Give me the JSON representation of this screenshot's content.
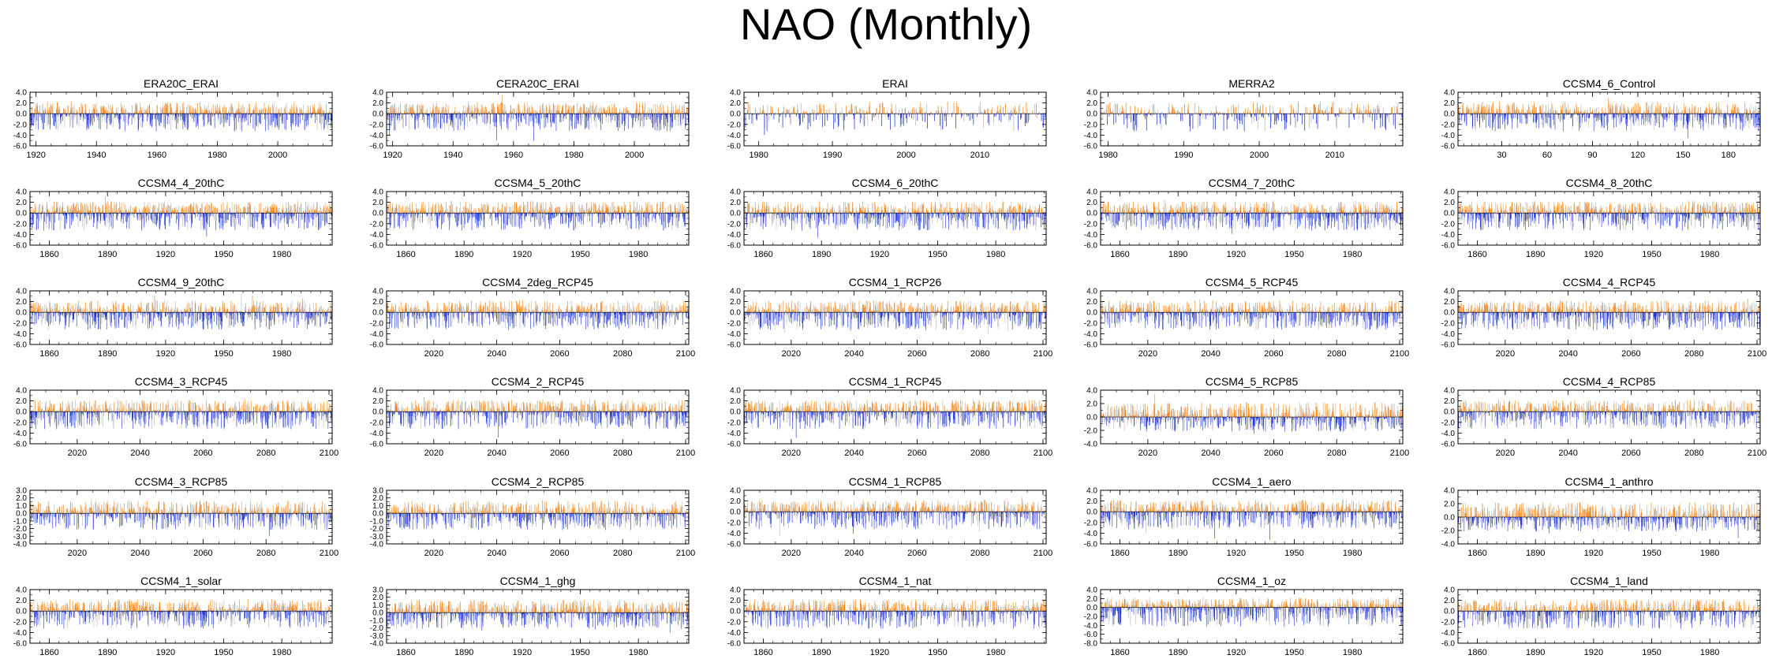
{
  "title": "NAO (Monthly)",
  "colors": {
    "positive": "#f07f0c",
    "negative": "#1b2fd6",
    "faint": "#b4b4b4",
    "axis": "#000000"
  },
  "chart_data": [
    {
      "type": "bar",
      "title": "ERA20C_ERAI",
      "x_range": [
        1918,
        2018
      ],
      "xticks": [
        1920,
        1940,
        1960,
        1980,
        2000
      ],
      "yticks": [
        "4.0",
        "2.0",
        "0.0",
        "-2.0",
        "-4.0",
        "-6.0"
      ],
      "ylim": [
        -6,
        4
      ],
      "n": 1200,
      "seed": 1
    },
    {
      "type": "bar",
      "title": "CERA20C_ERAI",
      "x_range": [
        1918,
        2018
      ],
      "xticks": [
        1920,
        1940,
        1960,
        1980,
        2000
      ],
      "yticks": [
        "4.0",
        "2.0",
        "0.0",
        "-2.0",
        "-4.0",
        "-6.0"
      ],
      "ylim": [
        -6,
        4
      ],
      "n": 1200,
      "seed": 2
    },
    {
      "type": "bar",
      "title": "ERAI",
      "x_range": [
        1978,
        2019
      ],
      "xticks": [
        1980,
        1990,
        2000,
        2010
      ],
      "yticks": [
        "4.0",
        "2.0",
        "0.0",
        "-2.0",
        "-4.0",
        "-6.0"
      ],
      "ylim": [
        -6,
        4
      ],
      "n": 480,
      "seed": 3
    },
    {
      "type": "bar",
      "title": "MERRA2",
      "x_range": [
        1979,
        2019
      ],
      "xticks": [
        1980,
        1990,
        2000,
        2010
      ],
      "yticks": [
        "4.0",
        "2.0",
        "0.0",
        "-2.0",
        "-4.0",
        "-6.0"
      ],
      "ylim": [
        -6,
        4
      ],
      "n": 470,
      "seed": 4
    },
    {
      "type": "bar",
      "title": "CCSM4_6_Control",
      "x_range": [
        1,
        201
      ],
      "xticks": [
        30,
        60,
        90,
        120,
        150,
        180
      ],
      "yticks": [
        "4.0",
        "2.0",
        "0.0",
        "-2.0",
        "-4.0",
        "-6.0"
      ],
      "ylim": [
        -6,
        4
      ],
      "n": 1200,
      "seed": 5
    },
    {
      "type": "bar",
      "title": "CCSM4_4_20thC",
      "x_range": [
        1850,
        2006
      ],
      "xticks": [
        1860,
        1890,
        1920,
        1950,
        1980
      ],
      "yticks": [
        "4.0",
        "2.0",
        "0.0",
        "-2.0",
        "-4.0",
        "-6.0"
      ],
      "ylim": [
        -6,
        4
      ],
      "n": 1200,
      "seed": 6
    },
    {
      "type": "bar",
      "title": "CCSM4_5_20thC",
      "x_range": [
        1850,
        2006
      ],
      "xticks": [
        1860,
        1890,
        1920,
        1950,
        1980
      ],
      "yticks": [
        "4.0",
        "2.0",
        "0.0",
        "-2.0",
        "-4.0",
        "-6.0"
      ],
      "ylim": [
        -6,
        4
      ],
      "n": 1200,
      "seed": 7
    },
    {
      "type": "bar",
      "title": "CCSM4_6_20thC",
      "x_range": [
        1850,
        2006
      ],
      "xticks": [
        1860,
        1890,
        1920,
        1950,
        1980
      ],
      "yticks": [
        "4.0",
        "2.0",
        "0.0",
        "-2.0",
        "-4.0",
        "-6.0"
      ],
      "ylim": [
        -6,
        4
      ],
      "n": 1200,
      "seed": 8
    },
    {
      "type": "bar",
      "title": "CCSM4_7_20thC",
      "x_range": [
        1850,
        2006
      ],
      "xticks": [
        1860,
        1890,
        1920,
        1950,
        1980
      ],
      "yticks": [
        "4.0",
        "2.0",
        "0.0",
        "-2.0",
        "-4.0",
        "-6.0"
      ],
      "ylim": [
        -6,
        4
      ],
      "n": 1200,
      "seed": 9
    },
    {
      "type": "bar",
      "title": "CCSM4_8_20thC",
      "x_range": [
        1850,
        2006
      ],
      "xticks": [
        1860,
        1890,
        1920,
        1950,
        1980
      ],
      "yticks": [
        "4.0",
        "2.0",
        "0.0",
        "-2.0",
        "-4.0",
        "-6.0"
      ],
      "ylim": [
        -6,
        4
      ],
      "n": 1200,
      "seed": 10
    },
    {
      "type": "bar",
      "title": "CCSM4_9_20thC",
      "x_range": [
        1850,
        2006
      ],
      "xticks": [
        1860,
        1890,
        1920,
        1950,
        1980
      ],
      "yticks": [
        "4.0",
        "2.0",
        "0.0",
        "-2.0",
        "-4.0",
        "-6.0"
      ],
      "ylim": [
        -6,
        4
      ],
      "n": 1200,
      "seed": 11
    },
    {
      "type": "bar",
      "title": "CCSM4_2deg_RCP45",
      "x_range": [
        2005,
        2101
      ],
      "xticks": [
        2020,
        2040,
        2060,
        2080,
        2100
      ],
      "yticks": [
        "4.0",
        "2.0",
        "0.0",
        "-2.0",
        "-4.0",
        "-6.0"
      ],
      "ylim": [
        -6,
        4
      ],
      "n": 1150,
      "seed": 12
    },
    {
      "type": "bar",
      "title": "CCSM4_1_RCP26",
      "x_range": [
        2005,
        2101
      ],
      "xticks": [
        2020,
        2040,
        2060,
        2080,
        2100
      ],
      "yticks": [
        "4.0",
        "2.0",
        "0.0",
        "-2.0",
        "-4.0",
        "-6.0"
      ],
      "ylim": [
        -6,
        4
      ],
      "n": 1150,
      "seed": 13
    },
    {
      "type": "bar",
      "title": "CCSM4_5_RCP45",
      "x_range": [
        2005,
        2101
      ],
      "xticks": [
        2020,
        2040,
        2060,
        2080,
        2100
      ],
      "yticks": [
        "4.0",
        "2.0",
        "0.0",
        "-2.0",
        "-4.0",
        "-6.0"
      ],
      "ylim": [
        -6,
        4
      ],
      "n": 1150,
      "seed": 14
    },
    {
      "type": "bar",
      "title": "CCSM4_4_RCP45",
      "x_range": [
        2005,
        2101
      ],
      "xticks": [
        2020,
        2040,
        2060,
        2080,
        2100
      ],
      "yticks": [
        "4.0",
        "2.0",
        "0.0",
        "-2.0",
        "-4.0",
        "-6.0"
      ],
      "ylim": [
        -6,
        4
      ],
      "n": 1150,
      "seed": 15
    },
    {
      "type": "bar",
      "title": "CCSM4_3_RCP45",
      "x_range": [
        2005,
        2101
      ],
      "xticks": [
        2020,
        2040,
        2060,
        2080,
        2100
      ],
      "yticks": [
        "4.0",
        "2.0",
        "0.0",
        "-2.0",
        "-4.0",
        "-6.0"
      ],
      "ylim": [
        -6,
        4
      ],
      "n": 1150,
      "seed": 16
    },
    {
      "type": "bar",
      "title": "CCSM4_2_RCP45",
      "x_range": [
        2005,
        2101
      ],
      "xticks": [
        2020,
        2040,
        2060,
        2080,
        2100
      ],
      "yticks": [
        "4.0",
        "2.0",
        "0.0",
        "-2.0",
        "-4.0",
        "-6.0"
      ],
      "ylim": [
        -6,
        4
      ],
      "n": 1150,
      "seed": 17
    },
    {
      "type": "bar",
      "title": "CCSM4_1_RCP45",
      "x_range": [
        2005,
        2101
      ],
      "xticks": [
        2020,
        2040,
        2060,
        2080,
        2100
      ],
      "yticks": [
        "4.0",
        "2.0",
        "0.0",
        "-2.0",
        "-4.0",
        "-6.0"
      ],
      "ylim": [
        -6,
        4
      ],
      "n": 1150,
      "seed": 18
    },
    {
      "type": "bar",
      "title": "CCSM4_5_RCP85",
      "x_range": [
        2005,
        2101
      ],
      "xticks": [
        2020,
        2040,
        2060,
        2080,
        2100
      ],
      "yticks": [
        "4.0",
        "2.0",
        "0.0",
        "-2.0",
        "-4.0"
      ],
      "ylim": [
        -4,
        4
      ],
      "n": 1150,
      "seed": 19
    },
    {
      "type": "bar",
      "title": "CCSM4_4_RCP85",
      "x_range": [
        2005,
        2101
      ],
      "xticks": [
        2020,
        2040,
        2060,
        2080,
        2100
      ],
      "yticks": [
        "4.0",
        "2.0",
        "0.0",
        "-2.0",
        "-4.0",
        "-6.0"
      ],
      "ylim": [
        -6,
        4
      ],
      "n": 1150,
      "seed": 20
    },
    {
      "type": "bar",
      "title": "CCSM4_3_RCP85",
      "x_range": [
        2005,
        2101
      ],
      "xticks": [
        2020,
        2040,
        2060,
        2080,
        2100
      ],
      "yticks": [
        "3.0",
        "2.0",
        "1.0",
        "0.0",
        "-1.0",
        "-2.0",
        "-3.0",
        "-4.0"
      ],
      "ylim": [
        -4,
        3
      ],
      "n": 1150,
      "seed": 21
    },
    {
      "type": "bar",
      "title": "CCSM4_2_RCP85",
      "x_range": [
        2005,
        2101
      ],
      "xticks": [
        2020,
        2040,
        2060,
        2080,
        2100
      ],
      "yticks": [
        "3.0",
        "2.0",
        "1.0",
        "0.0",
        "-1.0",
        "-2.0",
        "-3.0",
        "-4.0"
      ],
      "ylim": [
        -4,
        3
      ],
      "n": 1150,
      "seed": 22
    },
    {
      "type": "bar",
      "title": "CCSM4_1_RCP85",
      "x_range": [
        2005,
        2101
      ],
      "xticks": [
        2020,
        2040,
        2060,
        2080,
        2100
      ],
      "yticks": [
        "4.0",
        "2.0",
        "0.0",
        "-2.0",
        "-4.0",
        "-6.0"
      ],
      "ylim": [
        -6,
        4
      ],
      "n": 1150,
      "seed": 23
    },
    {
      "type": "bar",
      "title": "CCSM4_1_aero",
      "x_range": [
        1850,
        2006
      ],
      "xticks": [
        1860,
        1890,
        1920,
        1950,
        1980
      ],
      "yticks": [
        "4.0",
        "2.0",
        "0.0",
        "-2.0",
        "-4.0",
        "-6.0"
      ],
      "ylim": [
        -6,
        4
      ],
      "n": 1200,
      "seed": 24
    },
    {
      "type": "bar",
      "title": "CCSM4_1_anthro",
      "x_range": [
        1850,
        2006
      ],
      "xticks": [
        1860,
        1890,
        1920,
        1950,
        1980
      ],
      "yticks": [
        "4.0",
        "2.0",
        "0.0",
        "-2.0",
        "-4.0"
      ],
      "ylim": [
        -4,
        4
      ],
      "n": 1200,
      "seed": 25
    },
    {
      "type": "bar",
      "title": "CCSM4_1_solar",
      "x_range": [
        1850,
        2006
      ],
      "xticks": [
        1860,
        1890,
        1920,
        1950,
        1980
      ],
      "yticks": [
        "4.0",
        "2.0",
        "0.0",
        "-2.0",
        "-4.0",
        "-6.0"
      ],
      "ylim": [
        -6,
        4
      ],
      "n": 1200,
      "seed": 26
    },
    {
      "type": "bar",
      "title": "CCSM4_1_ghg",
      "x_range": [
        1850,
        2006
      ],
      "xticks": [
        1860,
        1890,
        1920,
        1950,
        1980
      ],
      "yticks": [
        "3.0",
        "2.0",
        "1.0",
        "0.0",
        "-1.0",
        "-2.0",
        "-3.0",
        "-4.0"
      ],
      "ylim": [
        -4,
        3
      ],
      "n": 1200,
      "seed": 27
    },
    {
      "type": "bar",
      "title": "CCSM4_1_nat",
      "x_range": [
        1850,
        2006
      ],
      "xticks": [
        1860,
        1890,
        1920,
        1950,
        1980
      ],
      "yticks": [
        "4.0",
        "2.0",
        "0.0",
        "-2.0",
        "-4.0",
        "-6.0"
      ],
      "ylim": [
        -6,
        4
      ],
      "n": 1200,
      "seed": 28
    },
    {
      "type": "bar",
      "title": "CCSM4_1_oz",
      "x_range": [
        1850,
        2006
      ],
      "xticks": [
        1860,
        1890,
        1920,
        1950,
        1980
      ],
      "yticks": [
        "4.0",
        "2.0",
        "0.0",
        "-2.0",
        "-4.0",
        "-6.0",
        "-8.0"
      ],
      "ylim": [
        -8,
        4
      ],
      "n": 1200,
      "seed": 29
    },
    {
      "type": "bar",
      "title": "CCSM4_1_land",
      "x_range": [
        1850,
        2006
      ],
      "xticks": [
        1860,
        1890,
        1920,
        1950,
        1980
      ],
      "yticks": [
        "4.0",
        "2.0",
        "0.0",
        "-2.0",
        "-4.0",
        "-6.0"
      ],
      "ylim": [
        -6,
        4
      ],
      "n": 1200,
      "seed": 30
    }
  ]
}
